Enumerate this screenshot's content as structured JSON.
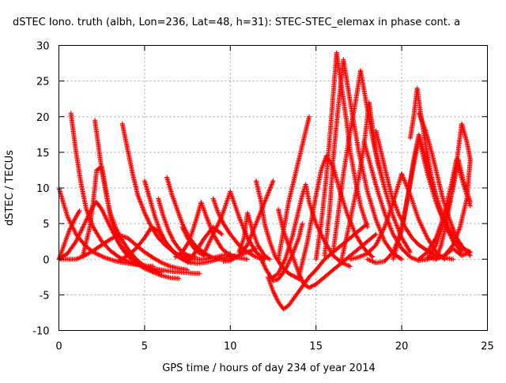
{
  "chart_data": {
    "type": "scatter",
    "title": "dSTEC Iono. truth (albh, Lon=236, Lat=48, h=31): STEC-STEC_elemax in phase cont. a",
    "xlabel": "GPS time / hours of day 234 of year 2014",
    "ylabel": "dSTEC  / TECUs",
    "xlim": [
      0,
      25
    ],
    "ylim": [
      -10,
      30
    ],
    "xticks": [
      0,
      5,
      10,
      15,
      20,
      25
    ],
    "yticks": [
      -10,
      -5,
      0,
      5,
      10,
      15,
      20,
      25,
      30
    ],
    "grid": true,
    "marker": "+",
    "color": "#ff0000",
    "series": [
      {
        "x": [
          0.0,
          0.5,
          1.0,
          1.5,
          2.0,
          2.6,
          3.2,
          3.8,
          4.4,
          5.0,
          5.5
        ],
        "values": [
          10.0,
          6.0,
          3.5,
          2.0,
          1.0,
          0.3,
          -0.2,
          -0.5,
          -0.7,
          -0.9,
          -1.0
        ]
      },
      {
        "x": [
          0.0,
          0.3,
          0.6,
          0.9,
          1.2
        ],
        "values": [
          0.0,
          2.0,
          4.0,
          5.5,
          6.8
        ]
      },
      {
        "x": [
          0.0,
          0.5,
          1.0,
          1.5,
          2.0,
          2.5,
          3.0,
          3.5,
          4.0,
          4.5,
          5.0,
          5.5,
          6.0,
          6.5,
          7.0,
          7.5
        ],
        "values": [
          0.0,
          0.0,
          0.0,
          0.5,
          1.2,
          2.0,
          2.8,
          3.4,
          3.0,
          2.0,
          1.0,
          0.2,
          -0.5,
          -1.0,
          -1.3,
          -1.5
        ]
      },
      {
        "x": [
          0.7,
          1.0,
          1.3,
          1.6,
          2.0,
          2.5,
          3.0,
          3.5,
          4.0,
          4.5,
          5.0,
          5.5,
          6.0,
          6.5,
          7.0,
          7.5,
          8.0,
          8.2
        ],
        "values": [
          20.5,
          15.0,
          10.5,
          7.0,
          4.5,
          2.5,
          1.2,
          0.3,
          -0.3,
          -0.7,
          -1.0,
          -1.3,
          -1.5,
          -1.7,
          -1.8,
          -1.9,
          -2.0,
          -2.0
        ]
      },
      {
        "x": [
          0.0,
          0.5,
          1.0,
          1.5,
          2.0,
          2.2,
          2.5,
          3.0,
          3.5,
          4.0,
          4.5,
          5.0,
          5.5,
          6.0
        ],
        "values": [
          0.0,
          0.8,
          2.5,
          5.0,
          7.5,
          8.0,
          7.0,
          4.5,
          2.2,
          0.8,
          -0.2,
          -1.0,
          -1.5,
          -1.8
        ]
      },
      {
        "x": [
          1.4,
          1.8,
          2.0,
          2.2,
          2.5,
          2.8,
          3.0,
          3.3,
          3.6,
          4.0,
          4.5,
          5.0,
          5.5,
          6.0,
          6.5,
          7.0
        ],
        "values": [
          0.5,
          4.5,
          8.0,
          12.5,
          13.0,
          9.0,
          6.0,
          3.5,
          1.8,
          0.5,
          -0.5,
          -1.3,
          -1.8,
          -2.3,
          -2.6,
          -2.7
        ]
      },
      {
        "x": [
          2.1,
          2.3,
          2.5,
          2.8,
          3.0,
          3.3,
          3.6,
          4.0,
          4.5,
          5.0,
          5.5
        ],
        "values": [
          19.5,
          16.0,
          12.5,
          8.5,
          6.5,
          4.5,
          3.0,
          1.5,
          0.0,
          -1.0,
          -1.8
        ]
      },
      {
        "x": [
          3.7,
          4.0,
          4.3,
          4.6,
          5.0,
          5.4,
          5.8,
          6.2,
          6.6,
          7.0,
          7.5,
          8.0,
          8.5,
          9.0,
          9.5,
          10.0
        ],
        "values": [
          19.0,
          15.5,
          12.0,
          9.0,
          6.5,
          4.5,
          3.0,
          2.0,
          1.2,
          0.6,
          0.2,
          0.0,
          0.0,
          0.2,
          0.5,
          0.8
        ]
      },
      {
        "x": [
          3.5,
          4.0,
          4.5,
          5.0,
          5.4,
          5.8,
          6.2,
          6.7,
          7.2,
          7.7
        ],
        "values": [
          -0.2,
          0.5,
          1.5,
          3.0,
          4.5,
          4.0,
          2.5,
          1.0,
          0.0,
          -0.5
        ]
      },
      {
        "x": [
          5.0,
          5.3,
          5.6,
          5.9,
          6.2,
          6.6,
          7.0,
          7.5,
          8.0,
          8.5,
          9.0,
          9.5,
          10.0,
          10.3
        ],
        "values": [
          11.0,
          8.5,
          6.0,
          4.0,
          2.5,
          1.2,
          0.3,
          -0.3,
          -0.6,
          -0.5,
          -0.2,
          0.2,
          0.4,
          0.5
        ]
      },
      {
        "x": [
          5.8,
          6.1,
          6.4,
          6.7,
          7.0,
          7.3,
          7.6,
          8.0
        ],
        "values": [
          8.5,
          6.0,
          4.0,
          2.5,
          1.5,
          0.8,
          0.5,
          0.3
        ]
      },
      {
        "x": [
          6.3,
          6.6,
          6.9,
          7.2,
          7.6,
          8.0,
          8.5,
          9.0,
          9.5,
          10.0,
          10.5,
          11.0,
          11.5
        ],
        "values": [
          11.5,
          9.0,
          7.0,
          5.0,
          3.0,
          1.8,
          0.8,
          0.2,
          0.0,
          0.1,
          0.5,
          1.0,
          1.5
        ]
      },
      {
        "x": [
          6.8,
          7.2,
          7.6,
          8.0,
          8.3,
          8.6,
          9.0,
          9.5,
          10.0,
          10.5,
          11.0
        ],
        "values": [
          0.3,
          1.0,
          2.5,
          5.5,
          8.0,
          6.0,
          3.5,
          1.5,
          0.5,
          0.2,
          0.0
        ]
      },
      {
        "x": [
          7.2,
          7.5,
          7.8,
          8.1,
          8.5
        ],
        "values": [
          4.5,
          3.0,
          1.8,
          1.0,
          0.5
        ]
      },
      {
        "x": [
          7.5,
          7.8,
          8.1,
          8.5,
          9.0,
          9.5
        ],
        "values": [
          -0.5,
          0.5,
          1.5,
          3.0,
          4.5,
          3.5
        ]
      },
      {
        "x": [
          8.5,
          9.0,
          9.5,
          10.0,
          10.5,
          11.0,
          11.5,
          12.0
        ],
        "values": [
          1.0,
          3.5,
          6.0,
          9.5,
          6.0,
          3.0,
          1.0,
          0.0
        ]
      },
      {
        "x": [
          9.0,
          9.3,
          9.6,
          10.0,
          10.5,
          11.0,
          11.5,
          12.0
        ],
        "values": [
          8.5,
          6.5,
          5.0,
          3.5,
          2.0,
          1.0,
          0.3,
          0.0
        ]
      },
      {
        "x": [
          9.6,
          10.0,
          10.5,
          11.0,
          11.5,
          12.0,
          12.5
        ],
        "values": [
          -0.3,
          -0.2,
          0.5,
          2.0,
          5.0,
          8.0,
          11.0
        ]
      },
      {
        "x": [
          10.5,
          10.8,
          11.0,
          11.3,
          11.6,
          12.0,
          12.3
        ],
        "values": [
          1.0,
          3.0,
          6.5,
          4.0,
          2.0,
          0.5,
          0.0
        ]
      },
      {
        "x": [
          11.5,
          11.8,
          12.0,
          12.3,
          12.6,
          13.0,
          13.4,
          13.8,
          14.2
        ],
        "values": [
          11.0,
          8.0,
          5.0,
          2.5,
          0.5,
          -1.0,
          -2.0,
          -2.5,
          -3.0
        ]
      },
      {
        "x": [
          11.8,
          12.1,
          12.5,
          12.8,
          13.2,
          13.6,
          14.0,
          14.2
        ],
        "values": [
          0.0,
          -1.5,
          -3.0,
          -2.8,
          -1.5,
          0.5,
          3.0,
          5.0
        ]
      },
      {
        "x": [
          12.2,
          12.5,
          12.8,
          13.1,
          13.4,
          13.7,
          14.0,
          14.3,
          14.6,
          15.0,
          15.5,
          16.0,
          16.5,
          17.0,
          17.5,
          18.0
        ],
        "values": [
          -2.5,
          -4.5,
          -6.0,
          -7.0,
          -6.5,
          -5.5,
          -4.5,
          -3.5,
          -2.5,
          -1.5,
          0.0,
          1.0,
          2.0,
          3.0,
          4.0,
          5.0
        ]
      },
      {
        "x": [
          12.8,
          13.1,
          13.4,
          13.7,
          14.0,
          14.3,
          14.6,
          15.0,
          15.5,
          16.0,
          16.5,
          17.0,
          17.5,
          18.0,
          18.5
        ],
        "values": [
          7.0,
          4.0,
          2.0,
          0.0,
          -2.0,
          -3.5,
          -4.0,
          -3.5,
          -2.5,
          -1.5,
          -0.5,
          0.5,
          1.5,
          2.5,
          3.5
        ]
      },
      {
        "x": [
          12.5,
          12.8,
          13.2,
          13.6,
          14.0,
          14.2,
          14.4,
          14.6,
          15.0,
          15.5,
          16.0,
          16.5,
          17.0
        ],
        "values": [
          -2.5,
          -2.0,
          0.0,
          3.0,
          7.0,
          9.0,
          10.5,
          8.0,
          5.0,
          2.5,
          0.5,
          -0.5,
          -1.0
        ]
      },
      {
        "x": [
          12.8,
          13.1,
          13.4,
          13.7,
          14.0,
          14.3,
          14.6
        ],
        "values": [
          0.0,
          4.0,
          8.0,
          11.0,
          14.0,
          17.0,
          20.0
        ]
      },
      {
        "x": [
          14.0,
          14.5,
          15.0,
          15.3,
          15.6,
          16.0,
          16.4,
          16.8,
          17.3,
          17.8,
          18.3
        ],
        "values": [
          -2.5,
          2.5,
          9.0,
          12.5,
          14.5,
          13.0,
          9.5,
          6.5,
          3.5,
          1.5,
          0.3
        ]
      },
      {
        "x": [
          15.0,
          15.3,
          15.6,
          15.8,
          16.0,
          16.2,
          16.5,
          16.8,
          17.0,
          17.3,
          17.6,
          18.0
        ],
        "values": [
          0.0,
          5.0,
          11.5,
          17.0,
          23.0,
          29.0,
          24.0,
          19.0,
          15.0,
          11.0,
          7.5,
          4.5
        ]
      },
      {
        "x": [
          15.5,
          15.8,
          16.0,
          16.3,
          16.6,
          17.0,
          17.5,
          18.0,
          18.5,
          19.0,
          19.5,
          20.0
        ],
        "values": [
          0.5,
          7.0,
          14.0,
          21.5,
          28.0,
          22.0,
          15.0,
          9.5,
          5.5,
          2.5,
          0.8,
          0.0
        ]
      },
      {
        "x": [
          16.0,
          16.3,
          16.6,
          17.0,
          17.3,
          17.6,
          18.0,
          18.3,
          18.6,
          19.0
        ],
        "values": [
          1.0,
          6.5,
          12.0,
          18.0,
          22.0,
          26.5,
          21.0,
          17.0,
          13.5,
          10.0
        ]
      },
      {
        "x": [
          16.5,
          17.0,
          17.5,
          17.8,
          18.1,
          18.5,
          19.0,
          19.5,
          20.0,
          20.5
        ],
        "values": [
          0.0,
          5.5,
          11.5,
          16.0,
          22.0,
          15.0,
          10.0,
          6.0,
          3.0,
          1.0
        ]
      },
      {
        "x": [
          17.0,
          17.5,
          18.0,
          18.5,
          19.0,
          19.5,
          20.0,
          20.5,
          21.0,
          21.5,
          22.0,
          22.5
        ],
        "values": [
          0.0,
          0.3,
          0.8,
          2.0,
          4.5,
          8.0,
          12.0,
          9.0,
          5.5,
          3.0,
          1.0,
          0.0
        ]
      },
      {
        "x": [
          17.8,
          18.2,
          18.6,
          19.0,
          19.5,
          20.0,
          20.5,
          21.0,
          21.5,
          22.0
        ],
        "values": [
          16.5,
          13.0,
          9.5,
          6.5,
          3.5,
          1.5,
          0.3,
          -0.2,
          0.0,
          0.5
        ]
      },
      {
        "x": [
          18.5,
          18.8,
          19.1,
          19.4,
          19.8,
          20.2,
          20.6,
          21.0,
          21.5,
          22.0,
          22.5,
          23.0
        ],
        "values": [
          18.0,
          15.0,
          12.0,
          9.0,
          6.5,
          4.5,
          3.0,
          2.0,
          1.2,
          0.5,
          0.2,
          0.0
        ]
      },
      {
        "x": [
          18.0,
          18.5,
          19.0,
          19.5,
          20.0,
          20.3,
          20.6,
          21.0,
          21.5,
          22.0,
          22.5,
          23.0
        ],
        "values": [
          0.0,
          -0.5,
          -0.3,
          1.0,
          4.0,
          8.0,
          12.0,
          17.0,
          12.0,
          8.0,
          5.0,
          3.0
        ]
      },
      {
        "x": [
          19.5,
          19.8,
          20.1,
          20.4,
          20.7,
          21.0,
          21.3,
          21.6,
          22.0,
          22.5,
          23.0,
          23.5
        ],
        "values": [
          0.0,
          2.5,
          5.5,
          9.5,
          14.0,
          17.5,
          15.0,
          12.0,
          8.5,
          5.0,
          2.5,
          1.0
        ]
      },
      {
        "x": [
          20.5,
          20.7,
          20.9,
          21.1,
          21.4,
          21.7,
          22.0,
          22.4,
          22.8,
          23.2,
          23.6,
          24.0
        ],
        "values": [
          17.0,
          20.0,
          24.0,
          20.5,
          16.0,
          12.0,
          9.0,
          6.0,
          4.0,
          2.5,
          1.5,
          1.0
        ]
      },
      {
        "x": [
          21.0,
          21.4,
          21.8,
          22.1,
          22.4,
          22.8,
          23.2,
          23.6,
          24.0
        ],
        "values": [
          20.5,
          18.0,
          14.5,
          11.5,
          8.5,
          5.5,
          3.0,
          1.5,
          0.5
        ]
      },
      {
        "x": [
          21.0,
          21.5,
          22.0,
          22.3,
          22.6,
          22.9,
          23.2,
          23.6,
          24.0
        ],
        "values": [
          0.0,
          1.0,
          3.0,
          5.0,
          7.5,
          10.5,
          14.0,
          10.5,
          7.5
        ]
      },
      {
        "x": [
          21.5,
          22.0,
          22.5,
          23.0,
          23.3,
          23.6,
          24.0
        ],
        "values": [
          0.0,
          2.0,
          5.5,
          10.0,
          14.0,
          11.0,
          8.0
        ]
      },
      {
        "x": [
          22.0,
          22.3,
          22.6,
          22.9,
          23.2,
          23.5,
          23.8,
          24.0
        ],
        "values": [
          0.0,
          2.0,
          5.0,
          9.0,
          13.5,
          19.0,
          16.5,
          14.0
        ]
      },
      {
        "x": [
          21.5,
          22.0,
          22.5,
          23.0,
          23.4,
          23.8,
          24.0
        ],
        "values": [
          0.3,
          0.0,
          0.5,
          2.0,
          4.5,
          8.5,
          14.0
        ]
      },
      {
        "x": [
          22.5,
          23.0,
          23.5,
          24.0
        ],
        "values": [
          0.5,
          1.5,
          0.5,
          1.0
        ]
      }
    ]
  }
}
